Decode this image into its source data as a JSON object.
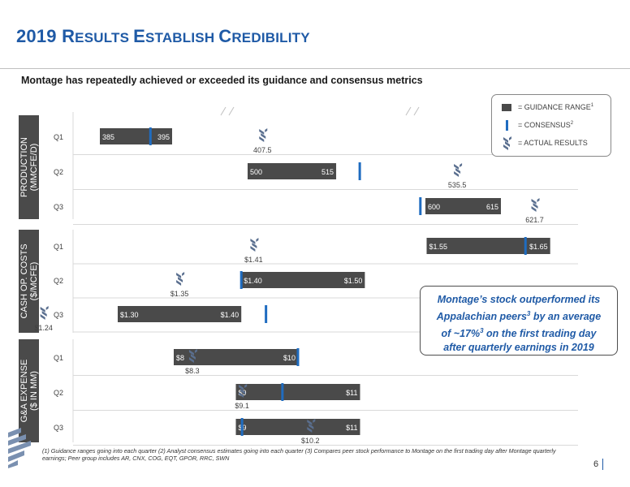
{
  "header": {
    "title_parts": [
      "2019 ",
      "R",
      "ESULTS ",
      "E",
      "STABLISH ",
      "C",
      "REDIBILITY"
    ],
    "subtitle": "Montage has repeatedly achieved or exceeded its guidance and consensus metrics"
  },
  "legend": {
    "guidance_range": "= GUIDANCE RANGE",
    "guidance_range_sup": "1",
    "consensus": "= CONSENSUS",
    "consensus_sup": "2",
    "actual": "= ACTUAL RESULTS"
  },
  "callout": {
    "line1": "Montage’s stock outperformed its",
    "line2a": "Appalachian peers",
    "line2sup": "3",
    "line2b": " by an average",
    "line3a": "of ~17%",
    "line3sup": "3",
    "line3b": " on the first trading day",
    "line4": "after quarterly earnings in 2019"
  },
  "footnote": "(1) Guidance ranges going into each quarter (2) Analyst consensus estimates going into each quarter (3) Compares peer stock performance to Montage on the first trading day after Montage quarterly earnings; Peer group includes AR, CNX, COG, EQT, GPOR, RRC, SWN",
  "page_number": "6",
  "colors": {
    "title": "#1f5aa6",
    "bar": "#4a4a4a",
    "consensus": "#1f6cc0",
    "section_label_bg": "#4a4a4a",
    "actual_icon": "#5a6f8f"
  },
  "chart_data": {
    "type": "range-bar",
    "panels": [
      {
        "label_line1": "PRODUCTION",
        "label_line2": "(MMCFE/D)",
        "broken_axis": true,
        "rows": [
          {
            "quarter": "Q1",
            "low": 385,
            "high": 395,
            "low_label": "385",
            "high_label": "395",
            "consensus": 392,
            "actual": 407.5,
            "actual_label": "407.5"
          },
          {
            "quarter": "Q2",
            "low": 500,
            "high": 515,
            "low_label": "500",
            "high_label": "515",
            "consensus": 519,
            "actual": 535.5,
            "actual_label": "535.5"
          },
          {
            "quarter": "Q3",
            "low": 600,
            "high": 615,
            "low_label": "600",
            "high_label": "615",
            "consensus": 599,
            "actual": 621.7,
            "actual_label": "621.7"
          }
        ]
      },
      {
        "label_line1": "CASH OP. COSTS",
        "label_line2": "($/MCFE)",
        "broken_axis": false,
        "rows": [
          {
            "quarter": "Q1",
            "low": 1.55,
            "high": 1.65,
            "low_label": "$1.55",
            "high_label": "$1.65",
            "consensus": 1.63,
            "actual": 1.41,
            "actual_label": "$1.41"
          },
          {
            "quarter": "Q2",
            "low": 1.4,
            "high": 1.5,
            "low_label": "$1.40",
            "high_label": "$1.50",
            "consensus": 1.4,
            "actual": 1.35,
            "actual_label": "$1.35"
          },
          {
            "quarter": "Q3",
            "low": 1.3,
            "high": 1.4,
            "low_label": "$1.30",
            "high_label": "$1.40",
            "consensus": 1.42,
            "actual": 1.24,
            "actual_label": "$1.24"
          }
        ]
      },
      {
        "label_line1": "G&A EXPENSE",
        "label_line2": "($ IN MM)",
        "broken_axis": false,
        "rows": [
          {
            "quarter": "Q1",
            "low": 8,
            "high": 10,
            "low_label": "$8",
            "high_label": "$10",
            "consensus": 10.0,
            "actual": 8.3,
            "actual_label": "$8.3"
          },
          {
            "quarter": "Q2",
            "low": 9,
            "high": 11,
            "low_label": "$9",
            "high_label": "$11",
            "consensus": 9.75,
            "actual": 9.1,
            "actual_label": "$9.1"
          },
          {
            "quarter": "Q3",
            "low": 9,
            "high": 11,
            "low_label": "$9",
            "high_label": "$11",
            "consensus": 9.1,
            "actual": 10.2,
            "actual_label": "$10.2"
          }
        ]
      }
    ]
  }
}
